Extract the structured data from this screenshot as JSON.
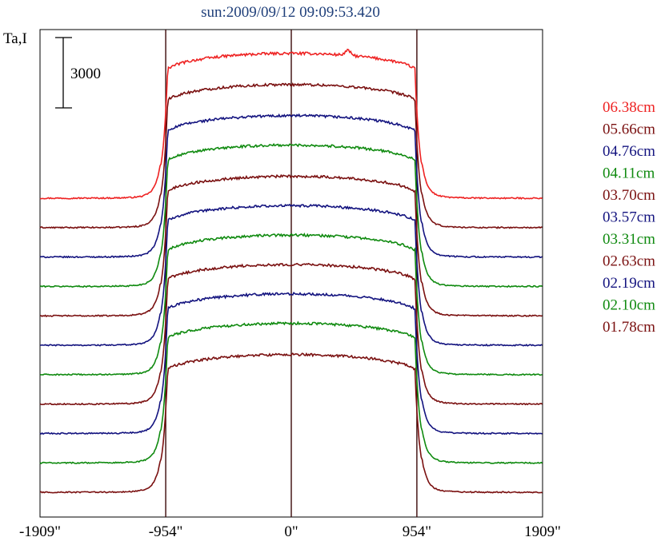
{
  "chart_data": {
    "type": "line",
    "title": "sun:2009/09/12 09:09:53.420",
    "ylabel": "Ta,I",
    "xlabel": "",
    "scale_bar_label": "3000",
    "scale_bar_value": 3000,
    "xlim": [
      -1909,
      1909
    ],
    "x_tick_values": [
      -1909,
      -954,
      0,
      954,
      1909
    ],
    "x_tick_labels": [
      "-1909\"",
      "-954\"",
      "0\"",
      "954\"",
      "1909\""
    ],
    "vertical_lines": [
      -954,
      0,
      954
    ],
    "grid": false,
    "legend_position": "right",
    "colors": {
      "red": "#ee2222",
      "maroon": "#7a1010",
      "blue": "#13137f",
      "green": "#0f8a0f",
      "axis": "#000000",
      "marker_line": "#3a0808",
      "title": "#1f3f7a"
    },
    "series": [
      {
        "name": "06.38cm",
        "color": "#ee2222",
        "baseline": 10,
        "peak": 8200
      },
      {
        "name": "05.66cm",
        "color": "#7a1010",
        "baseline": 9,
        "peak": 8100
      },
      {
        "name": "04.76cm",
        "color": "#13137f",
        "baseline": 8,
        "peak": 8000
      },
      {
        "name": "04.11cm",
        "color": "#0f8a0f",
        "baseline": 7,
        "peak": 8000
      },
      {
        "name": "03.70cm",
        "color": "#7a1010",
        "baseline": 6,
        "peak": 7900
      },
      {
        "name": "03.57cm",
        "color": "#13137f",
        "baseline": 5,
        "peak": 7900
      },
      {
        "name": "03.31cm",
        "color": "#0f8a0f",
        "baseline": 4,
        "peak": 7900
      },
      {
        "name": "02.63cm",
        "color": "#7a1010",
        "baseline": 3,
        "peak": 7900
      },
      {
        "name": "02.19cm",
        "color": "#13137f",
        "baseline": 2,
        "peak": 7900
      },
      {
        "name": "02.10cm",
        "color": "#0f8a0f",
        "baseline": 1,
        "peak": 7900
      },
      {
        "name": "01.78cm",
        "color": "#7a1010",
        "baseline": 0,
        "peak": 7800
      }
    ]
  }
}
